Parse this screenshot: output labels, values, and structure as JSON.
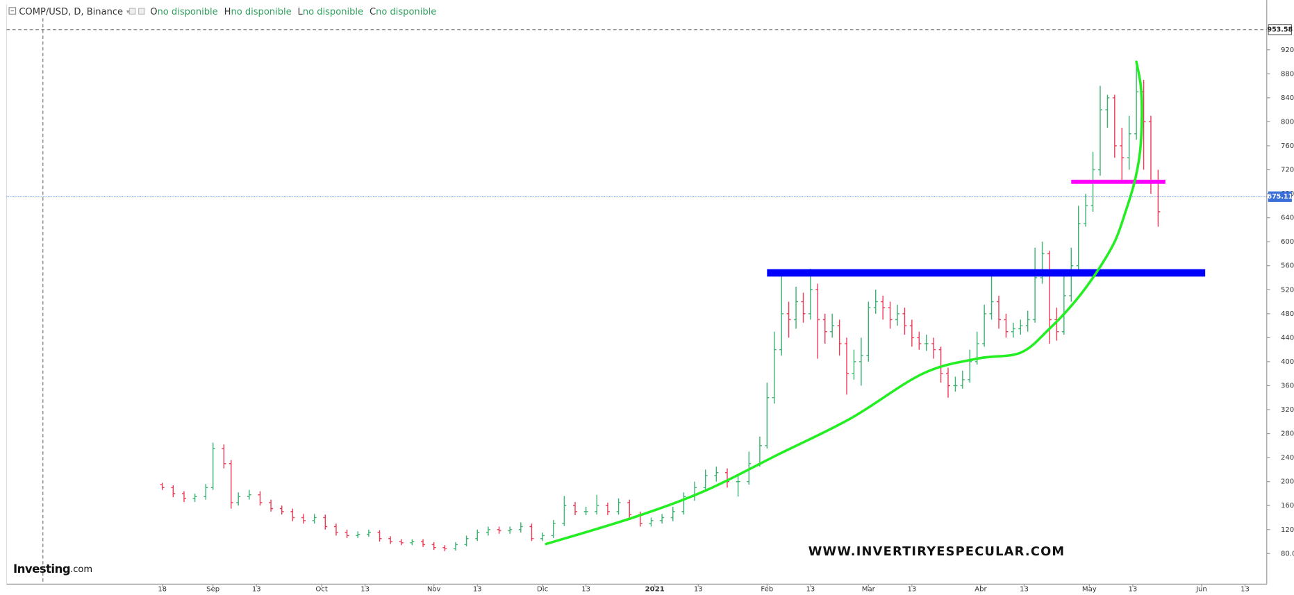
{
  "chart_data": {
    "type": "ohlc",
    "title": "COMP/USD, D, Binance",
    "header_fields": [
      {
        "key": "O",
        "value": "no disponible"
      },
      {
        "key": "H",
        "value": "no disponible"
      },
      {
        "key": "L",
        "value": "no disponible"
      },
      {
        "key": "C",
        "value": "no disponible"
      }
    ],
    "watermark": {
      "brand": "Investing",
      "suffix": ".com"
    },
    "annotation_text": "WWW.INVERTIRYESPECULAR.COM",
    "up_color": "#3cb371",
    "down_color": "#ef3b57",
    "xlim": [
      -43,
      305
    ],
    "ylim": [
      29,
      996
    ],
    "grid": false,
    "xticks": [
      {
        "value": 0,
        "label": "18"
      },
      {
        "value": 14,
        "label": "Sep"
      },
      {
        "value": 26,
        "label": "13"
      },
      {
        "value": 44,
        "label": "Oct"
      },
      {
        "value": 56,
        "label": "13"
      },
      {
        "value": 75,
        "label": "Nov"
      },
      {
        "value": 87,
        "label": "13"
      },
      {
        "value": 105,
        "label": "Dic"
      },
      {
        "value": 117,
        "label": "13"
      },
      {
        "value": 136,
        "label": "2021"
      },
      {
        "value": 148,
        "label": "13"
      },
      {
        "value": 167,
        "label": "Feb"
      },
      {
        "value": 179,
        "label": "13"
      },
      {
        "value": 195,
        "label": "Mar"
      },
      {
        "value": 207,
        "label": "13"
      },
      {
        "value": 226,
        "label": "Abr"
      },
      {
        "value": 238,
        "label": "13"
      },
      {
        "value": 256,
        "label": "May"
      },
      {
        "value": 268,
        "label": "13"
      },
      {
        "value": 287,
        "label": "Jun"
      },
      {
        "value": 299,
        "label": "13"
      }
    ],
    "yticks": [
      {
        "value": 80,
        "label": "80.00"
      },
      {
        "value": 120,
        "label": "120.00"
      },
      {
        "value": 160,
        "label": "160.00"
      },
      {
        "value": 200,
        "label": "200.00"
      },
      {
        "value": 240,
        "label": "240.00"
      },
      {
        "value": 280,
        "label": "280.00"
      },
      {
        "value": 320,
        "label": "320.00"
      },
      {
        "value": 360,
        "label": "360.00"
      },
      {
        "value": 400,
        "label": "400.00"
      },
      {
        "value": 440,
        "label": "440.00"
      },
      {
        "value": 480,
        "label": "480.00"
      },
      {
        "value": 520,
        "label": "520.00"
      },
      {
        "value": 560,
        "label": "560.00"
      },
      {
        "value": 600,
        "label": "600.00"
      },
      {
        "value": 640,
        "label": "640.00"
      },
      {
        "value": 680,
        "label": "680.00"
      },
      {
        "value": 720,
        "label": "720.00"
      },
      {
        "value": 760,
        "label": "760.00"
      },
      {
        "value": 800,
        "label": "800.00"
      },
      {
        "value": 840,
        "label": "840.00"
      },
      {
        "value": 880,
        "label": "880.00"
      },
      {
        "value": 920,
        "label": "920.00"
      }
    ],
    "price_markers": [
      {
        "value": 953.58,
        "style": "high",
        "color": "#555555"
      },
      {
        "value": 675.11,
        "style": "last",
        "color": "#3a6fd8"
      }
    ],
    "x": [
      0,
      3,
      6,
      9,
      12,
      14,
      17,
      19,
      21,
      24,
      27,
      30,
      33,
      36,
      39,
      42,
      45,
      48,
      51,
      54,
      57,
      60,
      63,
      66,
      69,
      72,
      75,
      78,
      81,
      84,
      87,
      90,
      93,
      96,
      99,
      102,
      105,
      108,
      111,
      114,
      117,
      120,
      123,
      126,
      129,
      132,
      135,
      138,
      141,
      144,
      147,
      150,
      153,
      156,
      159,
      162,
      165,
      167,
      169,
      171,
      173,
      175,
      177,
      179,
      181,
      183,
      185,
      187,
      189,
      191,
      193,
      195,
      197,
      199,
      201,
      203,
      205,
      207,
      209,
      211,
      213,
      215,
      217,
      219,
      221,
      223,
      225,
      227,
      229,
      231,
      233,
      235,
      237,
      239,
      241,
      243,
      245,
      247,
      249,
      251,
      253,
      255,
      257,
      259,
      261,
      263,
      265,
      267,
      269,
      271,
      273,
      275
    ],
    "open": [
      195,
      190,
      180,
      172,
      175,
      190,
      255,
      230,
      165,
      175,
      178,
      165,
      155,
      150,
      140,
      135,
      140,
      125,
      115,
      110,
      112,
      115,
      105,
      100,
      98,
      100,
      95,
      90,
      88,
      95,
      105,
      115,
      120,
      118,
      120,
      125,
      105,
      110,
      130,
      160,
      150,
      150,
      160,
      150,
      165,
      145,
      130,
      135,
      140,
      150,
      175,
      190,
      210,
      215,
      200,
      200,
      230,
      260,
      340,
      420,
      480,
      470,
      500,
      480,
      520,
      470,
      450,
      460,
      430,
      380,
      400,
      410,
      490,
      500,
      490,
      470,
      480,
      460,
      440,
      430,
      430,
      420,
      380,
      360,
      360,
      370,
      400,
      430,
      480,
      500,
      470,
      450,
      455,
      460,
      470,
      540,
      580,
      470,
      450,
      510,
      560,
      630,
      660,
      720,
      820,
      840,
      760,
      740,
      780,
      850,
      800,
      700
    ],
    "high": [
      198,
      194,
      184,
      180,
      196,
      265,
      262,
      236,
      182,
      186,
      184,
      170,
      160,
      155,
      146,
      146,
      145,
      130,
      120,
      117,
      120,
      119,
      109,
      104,
      104,
      104,
      99,
      94,
      99,
      110,
      120,
      125,
      125,
      125,
      132,
      130,
      115,
      136,
      176,
      166,
      158,
      178,
      165,
      172,
      170,
      150,
      140,
      146,
      158,
      182,
      200,
      220,
      225,
      222,
      210,
      250,
      275,
      365,
      450,
      545,
      500,
      525,
      515,
      555,
      530,
      480,
      480,
      470,
      440,
      420,
      440,
      500,
      520,
      510,
      500,
      495,
      490,
      470,
      450,
      445,
      440,
      425,
      390,
      375,
      385,
      420,
      450,
      495,
      545,
      510,
      480,
      465,
      470,
      485,
      590,
      600,
      585,
      490,
      550,
      590,
      660,
      680,
      750,
      860,
      845,
      845,
      790,
      810,
      900,
      870,
      810,
      720
    ],
    "low": [
      186,
      174,
      166,
      166,
      170,
      186,
      222,
      155,
      160,
      170,
      160,
      150,
      145,
      134,
      130,
      130,
      120,
      110,
      106,
      106,
      108,
      100,
      96,
      94,
      94,
      91,
      86,
      84,
      85,
      92,
      101,
      110,
      113,
      113,
      115,
      101,
      101,
      106,
      126,
      144,
      144,
      145,
      144,
      145,
      138,
      125,
      125,
      130,
      134,
      145,
      168,
      184,
      200,
      190,
      175,
      195,
      225,
      255,
      330,
      410,
      440,
      455,
      465,
      470,
      405,
      430,
      440,
      410,
      345,
      370,
      360,
      400,
      480,
      470,
      455,
      460,
      445,
      425,
      420,
      418,
      405,
      365,
      340,
      350,
      355,
      365,
      395,
      425,
      470,
      455,
      440,
      440,
      445,
      450,
      465,
      530,
      430,
      435,
      445,
      500,
      550,
      625,
      650,
      710,
      790,
      740,
      700,
      720,
      770,
      720,
      680,
      625
    ],
    "close": [
      190,
      180,
      172,
      175,
      190,
      255,
      230,
      165,
      175,
      178,
      165,
      155,
      150,
      140,
      135,
      140,
      125,
      115,
      110,
      112,
      115,
      105,
      100,
      98,
      100,
      95,
      90,
      88,
      95,
      105,
      115,
      120,
      118,
      120,
      125,
      105,
      110,
      130,
      160,
      150,
      150,
      160,
      150,
      165,
      145,
      130,
      135,
      140,
      150,
      175,
      190,
      210,
      215,
      200,
      200,
      230,
      260,
      340,
      420,
      480,
      470,
      500,
      480,
      520,
      470,
      450,
      460,
      430,
      380,
      400,
      410,
      490,
      500,
      490,
      470,
      480,
      460,
      440,
      430,
      430,
      420,
      380,
      360,
      360,
      370,
      400,
      430,
      480,
      500,
      470,
      450,
      455,
      460,
      470,
      540,
      580,
      470,
      450,
      510,
      560,
      630,
      660,
      720,
      820,
      840,
      760,
      740,
      780,
      850,
      800,
      700,
      650
    ],
    "annotations": [
      {
        "kind": "hline",
        "y": 548,
        "x": [
          167,
          288
        ],
        "color": "#0000ff",
        "width": 9
      },
      {
        "kind": "hline",
        "y": 700,
        "x": [
          251,
          277
        ],
        "color": "#ff00ff",
        "width": 5
      },
      {
        "kind": "curve",
        "color": "#22ee22",
        "width": 3,
        "x": [
          106,
          130,
          150,
          170,
          190,
          210,
          225,
          237,
          245,
          252,
          258,
          263,
          266,
          268.5,
          270,
          270.5,
          270.2,
          269
        ],
        "y": [
          96,
          140,
          185,
          245,
          305,
          380,
          405,
          415,
          455,
          500,
          549,
          600,
          650,
          700,
          750,
          810,
          860,
          900
        ]
      }
    ]
  }
}
